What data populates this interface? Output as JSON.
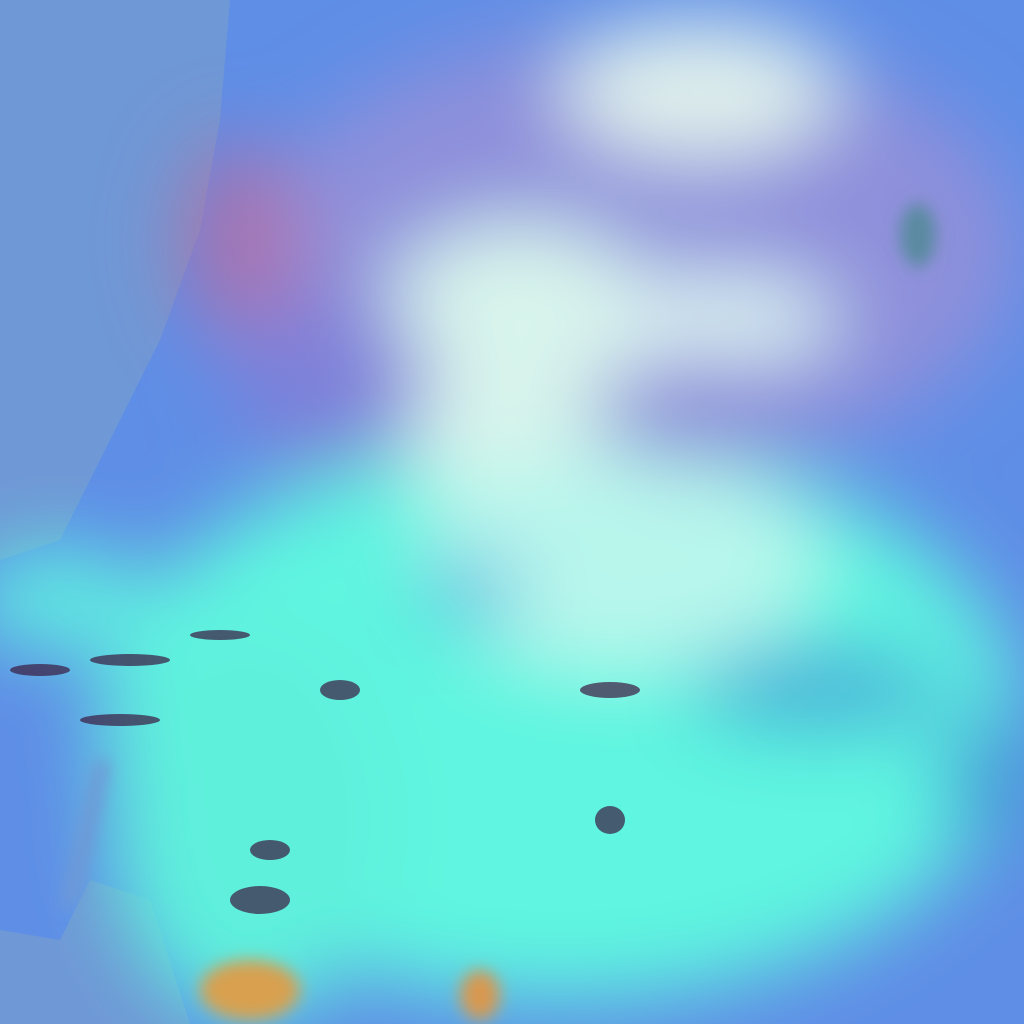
{
  "image": {
    "kind": "false-color satellite imagery",
    "colors": {
      "sea": "#6f98d6",
      "land": "#5f8ee6",
      "highland": "#c06a9a",
      "cloud_cyan": "#5ff5e0",
      "cloud_white": "#d8f4ec",
      "haze_purple": "#8a86d8",
      "lake": "#5a8aa0",
      "desert": "#d8a050",
      "shadow": "#3a1a40"
    }
  }
}
